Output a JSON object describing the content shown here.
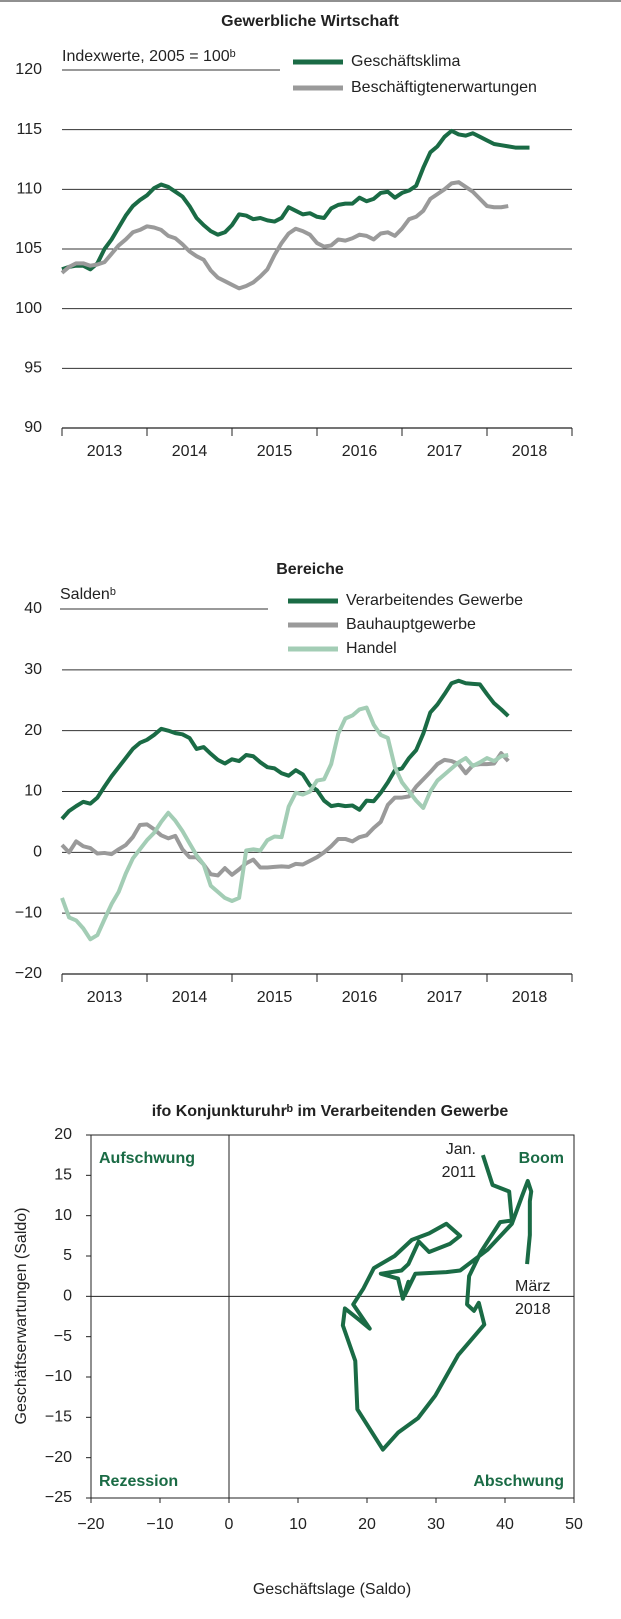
{
  "chart_data": [
    {
      "type": "line",
      "title": "Gewerbliche Wirtschaft",
      "subtitle": "Indexwerte, 2005 = 100ᵇ",
      "categories": [
        null,
        null,
        null,
        null,
        null,
        null,
        "2013",
        null,
        null,
        null,
        null,
        null,
        null,
        null,
        null,
        null,
        null,
        null,
        "2014",
        null,
        null,
        null,
        null,
        null,
        null,
        null,
        null,
        null,
        null,
        null,
        "2015",
        null,
        null,
        null,
        null,
        null,
        null,
        null,
        null,
        null,
        null,
        null,
        "2016",
        null,
        null,
        null,
        null,
        null,
        null,
        null,
        null,
        null,
        null,
        null,
        "2017",
        null,
        null,
        null,
        null,
        null,
        null,
        null,
        null,
        null,
        null,
        null,
        "2018"
      ],
      "series": [
        {
          "name": "Geschäftsklima",
          "color": "#1a6b45",
          "values": [
            103.3,
            103.5,
            103.6,
            103.6,
            103.3,
            103.8,
            105.0,
            105.8,
            106.8,
            107.8,
            108.6,
            109.1,
            109.5,
            110.1,
            110.4,
            110.2,
            109.8,
            109.4,
            108.6,
            107.6,
            107.0,
            106.5,
            106.2,
            106.4,
            107.0,
            107.9,
            107.8,
            107.5,
            107.6,
            107.4,
            107.3,
            107.6,
            108.5,
            108.2,
            107.9,
            108.0,
            107.7,
            107.6,
            108.4,
            108.7,
            108.8,
            108.8,
            109.3,
            109.0,
            109.2,
            109.7,
            109.8,
            109.3,
            109.7,
            109.9,
            110.3,
            111.8,
            113.1,
            113.6,
            114.4,
            114.9,
            114.6,
            114.5,
            114.7,
            114.4,
            114.1,
            113.8,
            113.7,
            113.6,
            113.5,
            113.5,
            113.5
          ]
        },
        {
          "name": "Beschäftigtenerwartungen",
          "color": "#9a9a9a",
          "values": [
            103.0,
            103.5,
            103.8,
            103.8,
            103.6,
            103.7,
            103.9,
            104.6,
            105.3,
            105.8,
            106.4,
            106.6,
            106.9,
            106.8,
            106.6,
            106.1,
            105.9,
            105.4,
            104.8,
            104.4,
            104.1,
            103.2,
            102.6,
            102.3,
            102.0,
            101.7,
            101.9,
            102.2,
            102.7,
            103.3,
            104.5,
            105.5,
            106.3,
            106.7,
            106.5,
            106.2,
            105.5,
            105.2,
            105.3,
            105.8,
            105.7,
            105.9,
            106.2,
            106.1,
            105.8,
            106.3,
            106.4,
            106.1,
            106.7,
            107.5,
            107.7,
            108.2,
            109.2,
            109.6,
            110.0,
            110.5,
            110.6,
            110.2,
            109.8,
            109.2,
            108.6,
            108.5,
            108.5,
            108.6,
            null,
            null,
            null
          ]
        }
      ],
      "ylim": [
        90,
        120
      ],
      "yticks": [
        90,
        95,
        100,
        105,
        110,
        115,
        120
      ],
      "grid": true
    },
    {
      "type": "line",
      "title": "Bereiche",
      "subtitle": "Saldenᵇ",
      "categories": [
        null,
        null,
        null,
        null,
        null,
        null,
        "2013",
        null,
        null,
        null,
        null,
        null,
        null,
        null,
        null,
        null,
        null,
        null,
        "2014",
        null,
        null,
        null,
        null,
        null,
        null,
        null,
        null,
        null,
        null,
        null,
        "2015",
        null,
        null,
        null,
        null,
        null,
        null,
        null,
        null,
        null,
        null,
        null,
        "2016",
        null,
        null,
        null,
        null,
        null,
        null,
        null,
        null,
        null,
        null,
        null,
        "2017",
        null,
        null,
        null,
        null,
        null,
        null,
        null,
        null,
        null,
        null,
        null,
        "2018"
      ],
      "series": [
        {
          "name": "Verarbeitendes Gewerbe",
          "color": "#1a6b45",
          "values": [
            5.5,
            6.8,
            7.6,
            8.3,
            8.0,
            9.0,
            10.8,
            12.5,
            14.0,
            15.5,
            17.0,
            18.0,
            18.5,
            19.3,
            20.3,
            20.0,
            19.6,
            19.4,
            18.8,
            17.0,
            17.3,
            16.2,
            15.2,
            14.6,
            15.3,
            15.0,
            16.0,
            15.8,
            14.8,
            14.0,
            13.8,
            13.0,
            12.6,
            13.5,
            12.8,
            11.0,
            10.2,
            8.5,
            7.6,
            7.8,
            7.6,
            7.7,
            7.0,
            8.5,
            8.4,
            9.8,
            11.5,
            13.5,
            13.8,
            15.5,
            16.8,
            19.5,
            23.0,
            24.3,
            26.0,
            27.8,
            28.2,
            27.8,
            27.7,
            27.6,
            26.0,
            24.5,
            23.5,
            22.4,
            null,
            null,
            null
          ]
        },
        {
          "name": "Bauhauptgewerbe",
          "color": "#9a9a9a",
          "values": [
            1.2,
            0.0,
            1.8,
            1.0,
            0.7,
            -0.2,
            -0.1,
            -0.3,
            0.5,
            1.2,
            2.5,
            4.5,
            4.6,
            3.8,
            2.8,
            2.3,
            2.7,
            0.5,
            -0.8,
            -0.8,
            -2.0,
            -3.6,
            -3.8,
            -2.6,
            -3.7,
            -2.8,
            -1.8,
            -1.2,
            -2.5,
            -2.5,
            -2.4,
            -2.3,
            -2.4,
            -1.9,
            -2.0,
            -1.4,
            -0.8,
            0.0,
            1.0,
            2.2,
            2.2,
            1.8,
            2.5,
            2.8,
            4.0,
            5.0,
            7.8,
            9.0,
            9.0,
            9.2,
            10.8,
            12.0,
            13.2,
            14.5,
            15.2,
            15.0,
            14.5,
            13.0,
            14.3,
            14.5,
            14.5,
            14.6,
            16.3,
            15.0,
            null,
            null,
            null
          ]
        },
        {
          "name": "Handel",
          "color": "#a3cdb5",
          "values": [
            -7.5,
            -10.7,
            -11.2,
            -12.5,
            -14.3,
            -13.6,
            -11.0,
            -8.5,
            -6.5,
            -3.5,
            -1.0,
            0.5,
            2.0,
            3.2,
            5.0,
            6.5,
            5.2,
            3.5,
            1.5,
            -0.5,
            -2.0,
            -5.5,
            -6.5,
            -7.5,
            -8.0,
            -7.5,
            0.3,
            0.5,
            0.3,
            2.0,
            2.6,
            2.5,
            7.5,
            9.8,
            9.5,
            10.0,
            11.8,
            12.0,
            14.5,
            19.5,
            22.0,
            22.5,
            23.5,
            23.8,
            21.0,
            19.3,
            18.8,
            14.0,
            11.5,
            10.0,
            8.5,
            7.3,
            10.0,
            11.8,
            12.8,
            13.8,
            14.8,
            15.5,
            14.2,
            14.8,
            15.5,
            15.0,
            15.8,
            16.0,
            null,
            null,
            null
          ]
        }
      ],
      "ylim": [
        -20,
        40
      ],
      "yticks": [
        {
          "value": -20,
          "label": "−20"
        },
        {
          "value": -10,
          "label": "−10"
        },
        0,
        10,
        20,
        30,
        40
      ],
      "grid": true
    },
    {
      "type": "scatter",
      "title": "ifo Konjunkturuhrᵇ im Verarbeitenden Gewerbe",
      "xlabel": "Geschäftslage (Saldo)",
      "ylabel": "Geschäftserwartungen (Saldo)",
      "color": "#1a6b45",
      "x": [
        36.8,
        38.2,
        40.6,
        41.0,
        39.3,
        36.5,
        34.8,
        34.5,
        35.5,
        36.2,
        37.0,
        33.2,
        29.9,
        27.4,
        24.5,
        22.3,
        18.6,
        18.3,
        16.5,
        16.8,
        19.0,
        20.4,
        18.0,
        19.5,
        21.0,
        24.0,
        26.5,
        29.0,
        31.5,
        33.5,
        32.0,
        29.0,
        27.5,
        26.0,
        25.0,
        22.0,
        24.5,
        25.2,
        26.0,
        25.5,
        27.0,
        31.5,
        33.5,
        37.5,
        41.0,
        42.5,
        43.3,
        43.8,
        43.6,
        43.6,
        43.2
      ],
      "values": [
        17.5,
        13.8,
        13.0,
        9.4,
        9.2,
        5.5,
        2.5,
        -1.0,
        -1.8,
        -0.8,
        -3.5,
        -7.3,
        -12.3,
        -15.1,
        -16.9,
        -19.0,
        -14.0,
        -8.0,
        -3.6,
        -1.5,
        -3.0,
        -4.0,
        -1.0,
        1.0,
        3.5,
        5.0,
        7.0,
        7.8,
        9.0,
        7.5,
        6.5,
        5.5,
        6.8,
        4.0,
        3.2,
        2.8,
        2.2,
        -0.3,
        1.8,
        0.2,
        2.8,
        3.0,
        3.2,
        5.8,
        9.0,
        12.5,
        14.3,
        13.0,
        11.8,
        7.6,
        4.0
      ],
      "xlim": [
        -20,
        50
      ],
      "xticks": [
        {
          "value": -20,
          "label": "−20"
        },
        {
          "value": -10,
          "label": "−10"
        },
        0,
        10,
        20,
        30,
        40,
        50
      ],
      "ylim": [
        -25,
        20
      ],
      "yticks": [
        {
          "value": -25,
          "label": "−25"
        },
        {
          "value": -20,
          "label": "−20"
        },
        {
          "value": -15,
          "label": "−15"
        },
        {
          "value": -10,
          "label": "−10"
        },
        {
          "value": -5,
          "label": "−5"
        },
        0,
        5,
        10,
        15,
        20
      ],
      "quadrant_labels": [
        "Aufschwung",
        "Boom",
        "Rezession",
        "Abschwung"
      ],
      "annotations": [
        [
          "Jan.",
          "2011"
        ],
        [
          "März",
          "2018"
        ]
      ],
      "grid": false
    }
  ]
}
